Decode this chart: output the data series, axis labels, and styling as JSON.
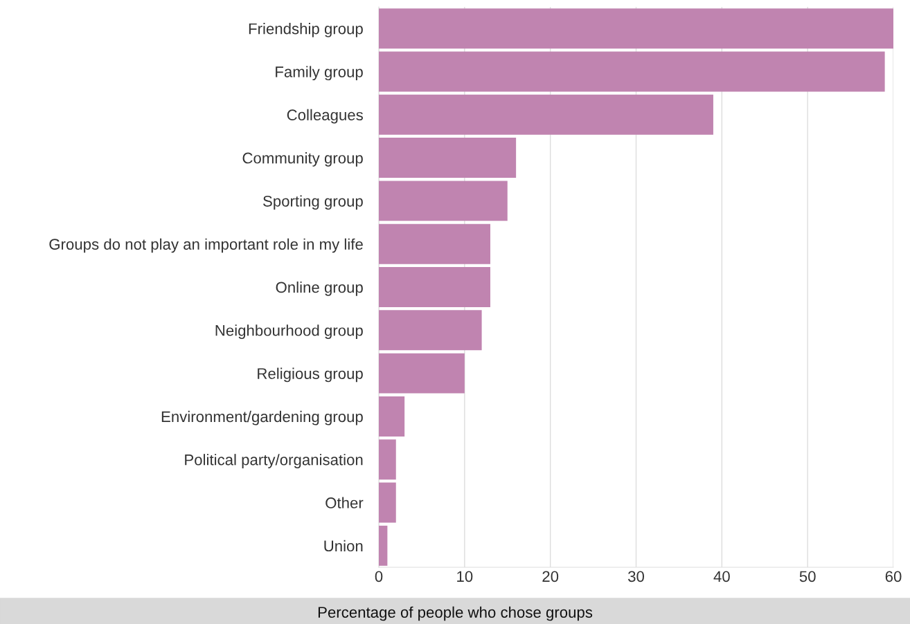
{
  "chart_data": {
    "type": "bar",
    "orientation": "horizontal",
    "xlabel": "Percentage of people who chose groups",
    "categories": [
      "Friendship group",
      "Family group",
      "Colleagues",
      "Community group",
      "Sporting group",
      "Groups do not play an important role in my life",
      "Online group",
      "Neighbourhood group",
      "Religious group",
      "Environment/gardening group",
      "Political party/organisation",
      "Other",
      "Union"
    ],
    "values": [
      60,
      59,
      39,
      16,
      15,
      13,
      13,
      12,
      10,
      3,
      2,
      2,
      1
    ],
    "color": "#c084b0",
    "xlim": [
      0,
      60
    ],
    "xticks": [
      0,
      10,
      20,
      30,
      40,
      50,
      60
    ],
    "grid": "x"
  }
}
